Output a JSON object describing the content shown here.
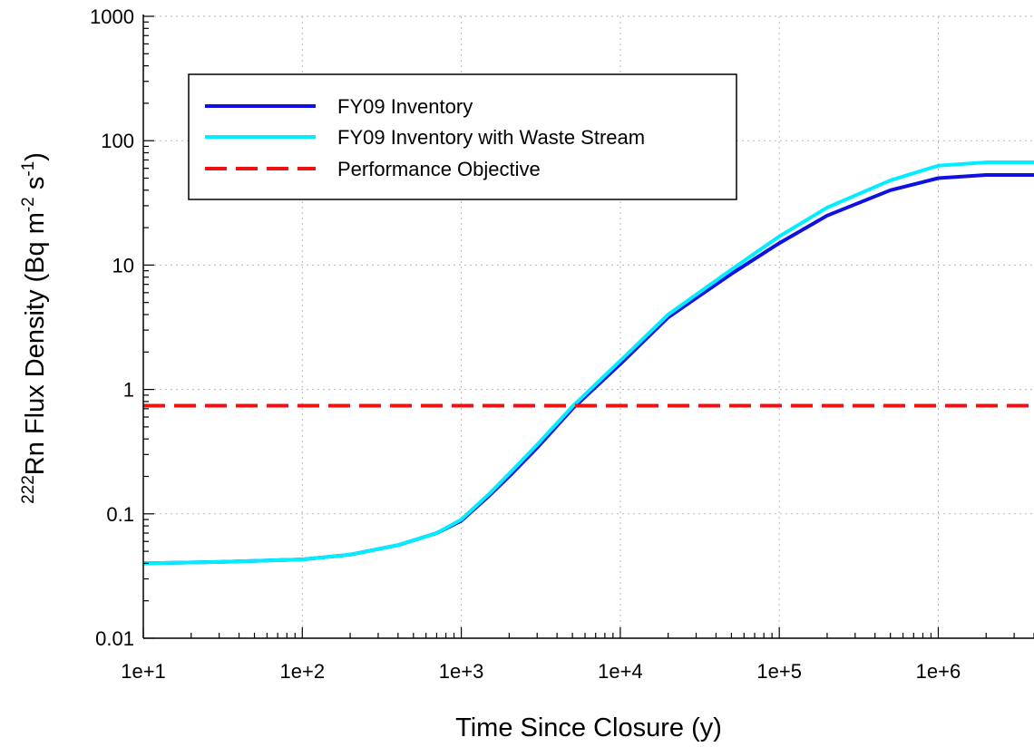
{
  "chart_data": {
    "type": "line",
    "xlabel": "Time Since Closure (y)",
    "ylabel": {
      "sup_pre": "222",
      "main": "Rn Flux Density (Bq m",
      "sup1": "-2",
      "mid": " s",
      "sup2": "-1",
      "end": ")"
    },
    "x_scale": "log",
    "y_scale": "log",
    "xlim": [
      10,
      4000000
    ],
    "ylim": [
      0.01,
      1000
    ],
    "x_ticks": [
      10,
      100,
      1000,
      10000,
      100000,
      1000000
    ],
    "x_tick_labels": [
      "1e+1",
      "1e+2",
      "1e+3",
      "1e+4",
      "1e+5",
      "1e+6"
    ],
    "y_ticks": [
      0.01,
      0.1,
      1,
      10,
      100,
      1000
    ],
    "y_tick_labels": [
      "0.01",
      "0.1",
      "1",
      "10",
      "100",
      "1000"
    ],
    "grid": true,
    "legend_position": "top-left",
    "series": [
      {
        "name": "FY09 Inventory",
        "color": "#1010e0",
        "style": "solid",
        "x": [
          10,
          30,
          100,
          200,
          400,
          700,
          1000,
          1500,
          2000,
          3000,
          5000,
          10000,
          20000,
          50000,
          100000,
          200000,
          500000,
          1000000,
          2000000,
          4000000
        ],
        "y": [
          0.04,
          0.041,
          0.043,
          0.047,
          0.056,
          0.07,
          0.088,
          0.14,
          0.2,
          0.34,
          0.7,
          1.6,
          3.8,
          8.5,
          15,
          25,
          40,
          50,
          53,
          53
        ]
      },
      {
        "name": "FY09 Inventory with Waste Stream",
        "color": "#00eeff",
        "style": "solid",
        "x": [
          10,
          30,
          100,
          200,
          400,
          700,
          1000,
          1500,
          2000,
          3000,
          5000,
          10000,
          20000,
          50000,
          100000,
          200000,
          500000,
          1000000,
          2000000,
          4000000
        ],
        "y": [
          0.04,
          0.041,
          0.043,
          0.047,
          0.056,
          0.07,
          0.09,
          0.145,
          0.21,
          0.36,
          0.73,
          1.7,
          4.0,
          9.2,
          17,
          29,
          48,
          63,
          67,
          67
        ]
      },
      {
        "name": "Performance Objective",
        "color": "#ee1111",
        "style": "dashed",
        "x": [
          10,
          4000000
        ],
        "y": [
          0.74,
          0.74
        ]
      }
    ]
  }
}
